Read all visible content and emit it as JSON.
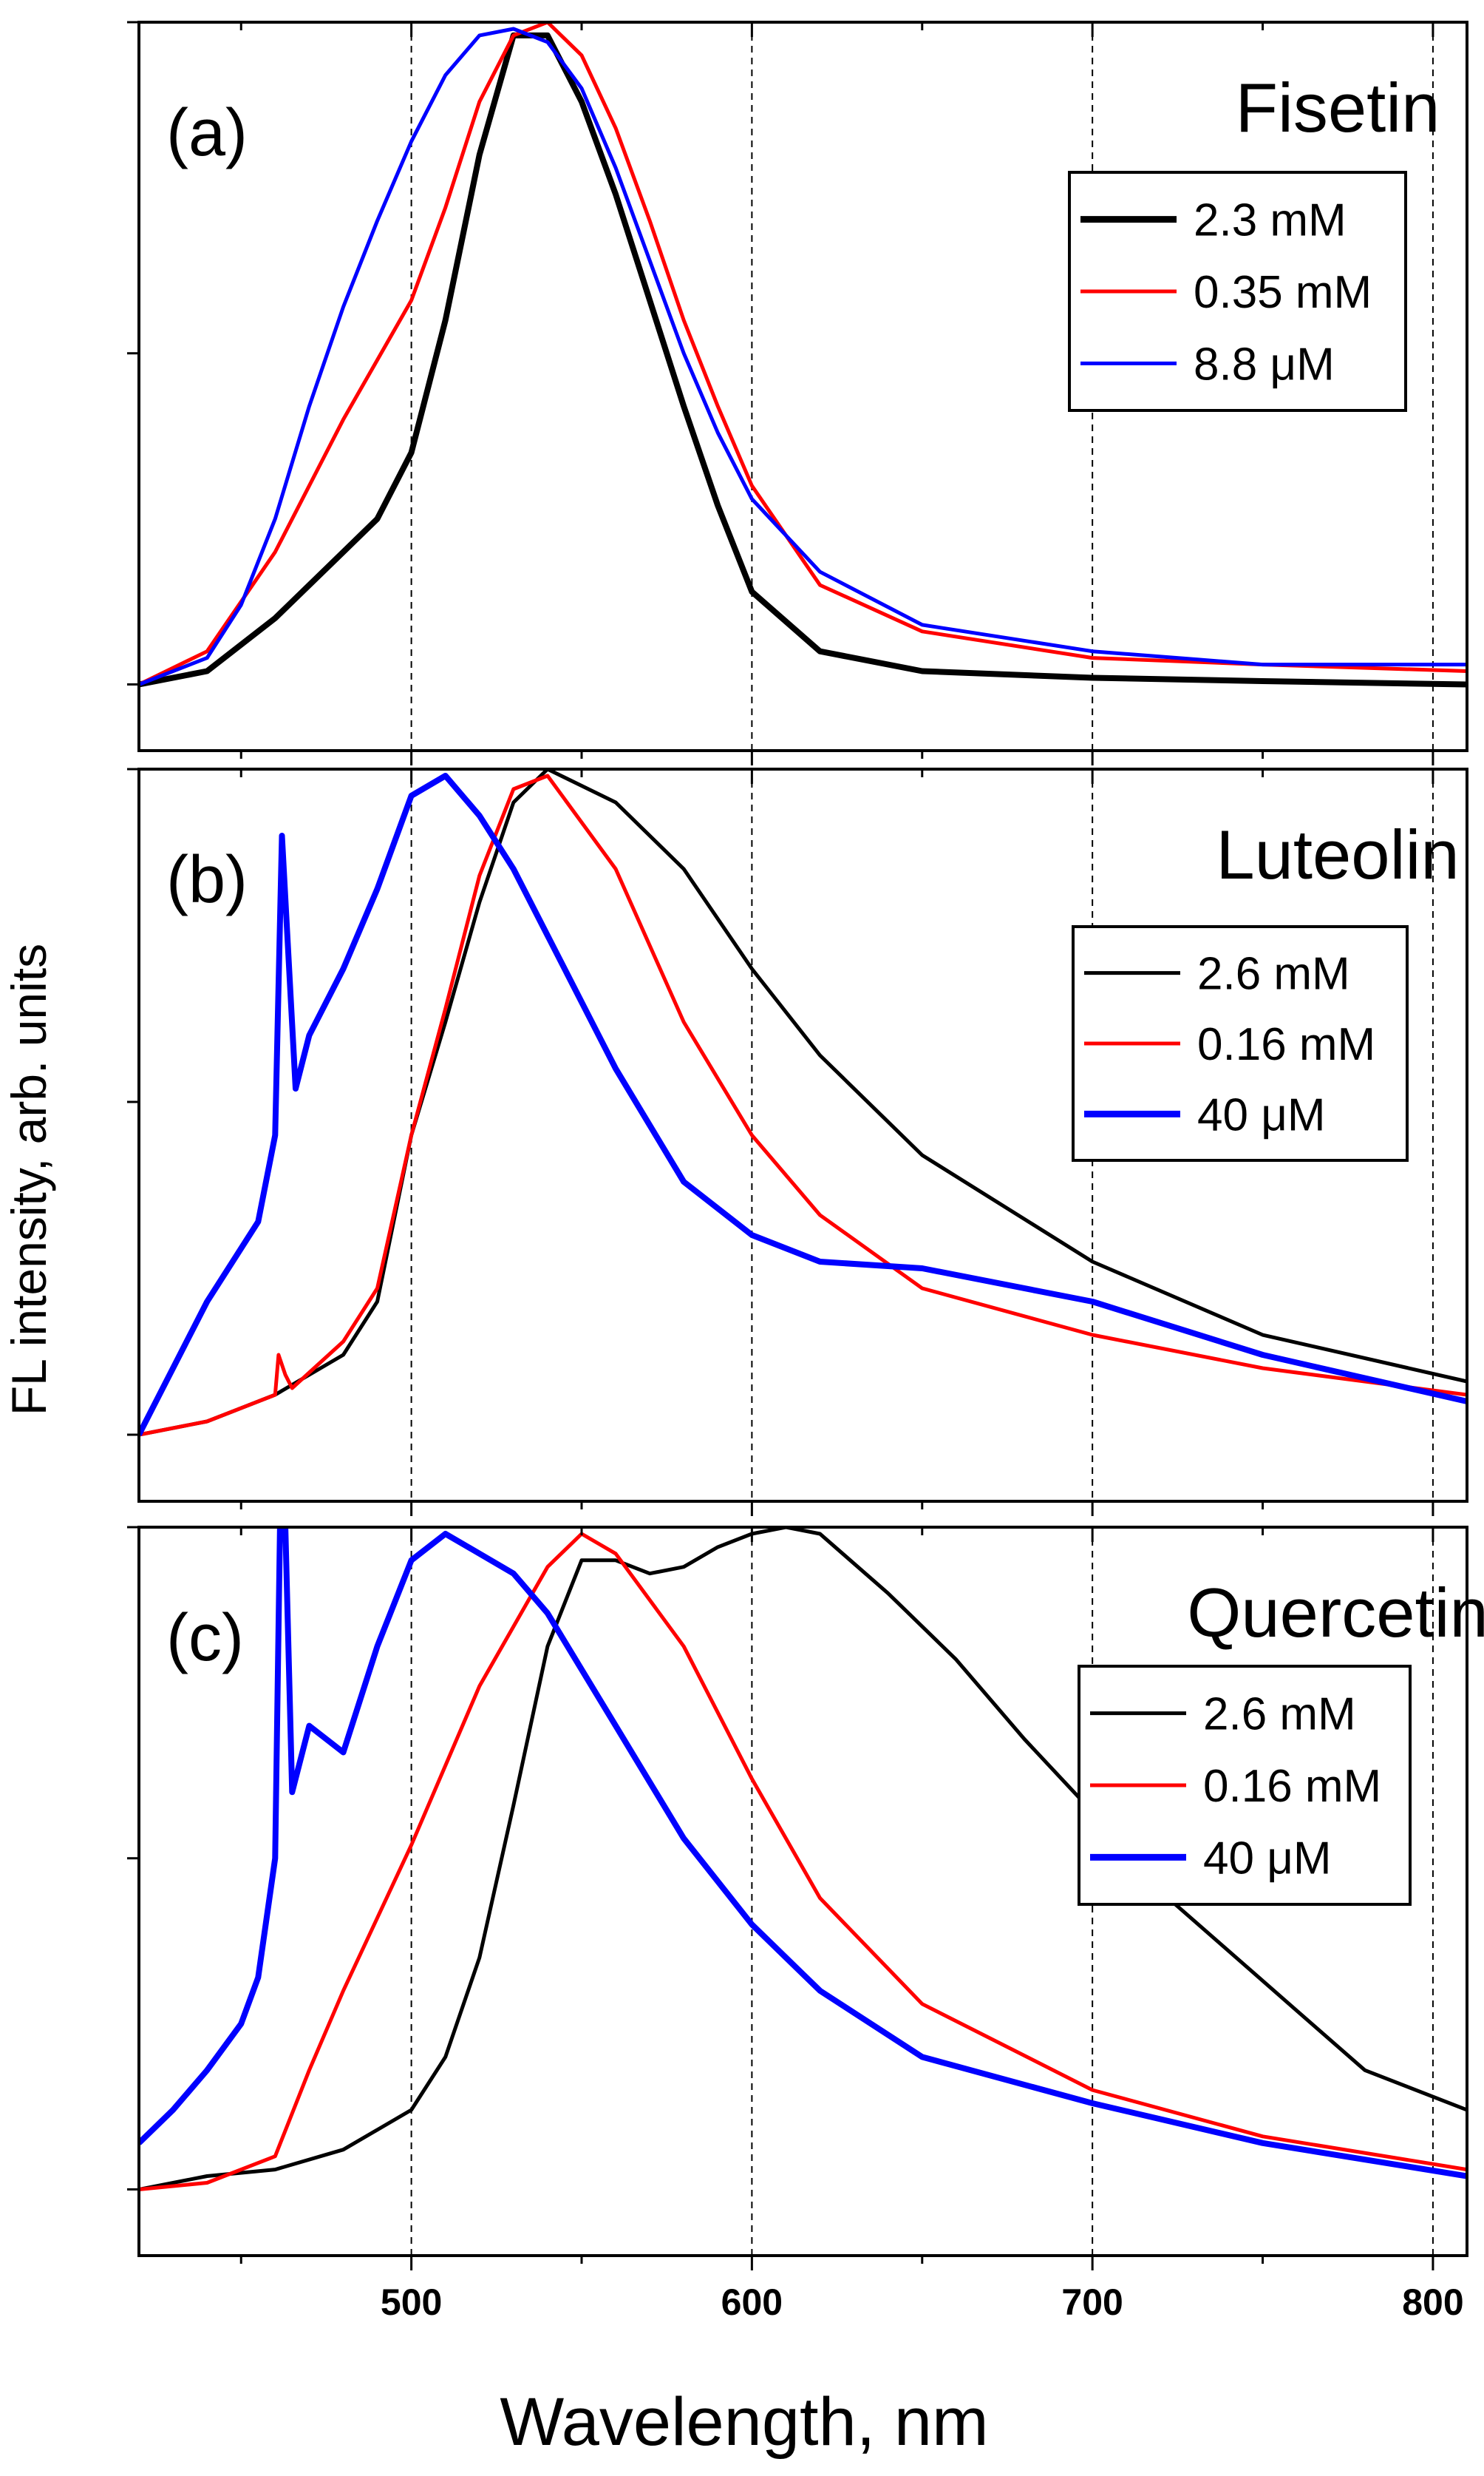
{
  "figure": {
    "ylabel": "FL intensity, arb. units",
    "xlabel": "Wavelength, nm"
  },
  "chart_data": [
    {
      "type": "line",
      "panel_label": "(a)",
      "title": "Fisetin",
      "xlim": [
        420,
        810
      ],
      "ylim": [
        -0.1,
        1.0
      ],
      "x_ticks": [
        500,
        600,
        700,
        800
      ],
      "x_tick_labels": [
        "500",
        "600",
        "700",
        "800"
      ],
      "gridlines_x": [
        500,
        600,
        700,
        800
      ],
      "grid": "vertical dashed",
      "legend_position": "top-right",
      "series": [
        {
          "name": "2.3 mM",
          "color": "#000000",
          "x": [
            420,
            440,
            460,
            480,
            490,
            500,
            510,
            520,
            530,
            540,
            550,
            560,
            570,
            580,
            590,
            600,
            620,
            650,
            700,
            750,
            810
          ],
          "y": [
            0.0,
            0.02,
            0.1,
            0.2,
            0.25,
            0.35,
            0.55,
            0.8,
            0.98,
            0.98,
            0.88,
            0.74,
            0.58,
            0.42,
            0.27,
            0.14,
            0.05,
            0.02,
            0.01,
            0.005,
            0.0
          ]
        },
        {
          "name": "0.35 mM",
          "color": "#ff0000",
          "x": [
            420,
            440,
            460,
            480,
            500,
            510,
            520,
            530,
            540,
            550,
            560,
            570,
            580,
            590,
            600,
            620,
            650,
            700,
            750,
            810
          ],
          "y": [
            0.0,
            0.05,
            0.2,
            0.4,
            0.58,
            0.72,
            0.88,
            0.98,
            1.0,
            0.95,
            0.84,
            0.7,
            0.55,
            0.42,
            0.3,
            0.15,
            0.08,
            0.04,
            0.03,
            0.02
          ]
        },
        {
          "name": "8.8 μM",
          "color": "#0000ff",
          "x": [
            420,
            440,
            450,
            460,
            470,
            480,
            490,
            500,
            510,
            520,
            530,
            540,
            550,
            560,
            570,
            580,
            590,
            600,
            620,
            650,
            700,
            750,
            810
          ],
          "y": [
            0.0,
            0.04,
            0.12,
            0.25,
            0.42,
            0.57,
            0.7,
            0.82,
            0.92,
            0.98,
            0.99,
            0.97,
            0.9,
            0.78,
            0.64,
            0.5,
            0.38,
            0.28,
            0.17,
            0.09,
            0.05,
            0.03,
            0.03
          ]
        }
      ]
    },
    {
      "type": "line",
      "panel_label": "(b)",
      "title": "Luteolin",
      "xlim": [
        420,
        810
      ],
      "ylim": [
        -0.1,
        1.0
      ],
      "x_ticks": [
        500,
        600,
        700,
        800
      ],
      "x_tick_labels": [
        "500",
        "600",
        "700",
        "800"
      ],
      "gridlines_x": [
        500,
        600,
        700,
        800
      ],
      "grid": "vertical dashed",
      "legend_position": "right",
      "series": [
        {
          "name": "2.6 mM",
          "color": "#000000",
          "x": [
            420,
            440,
            460,
            480,
            490,
            500,
            510,
            520,
            530,
            540,
            560,
            580,
            600,
            620,
            650,
            700,
            750,
            810
          ],
          "y": [
            0.0,
            0.02,
            0.06,
            0.12,
            0.2,
            0.45,
            0.62,
            0.8,
            0.95,
            1.0,
            0.95,
            0.85,
            0.7,
            0.57,
            0.42,
            0.26,
            0.15,
            0.08
          ]
        },
        {
          "name": "0.16 mM",
          "color": "#ff0000",
          "x": [
            420,
            440,
            460,
            461,
            463,
            465,
            480,
            490,
            500,
            510,
            520,
            530,
            540,
            560,
            580,
            600,
            620,
            650,
            700,
            750,
            810
          ],
          "y": [
            0.0,
            0.02,
            0.06,
            0.12,
            0.09,
            0.07,
            0.14,
            0.22,
            0.45,
            0.64,
            0.84,
            0.97,
            0.99,
            0.85,
            0.62,
            0.45,
            0.33,
            0.22,
            0.15,
            0.1,
            0.06
          ]
        },
        {
          "name": "40 μM",
          "color": "#0000ff",
          "x": [
            420,
            440,
            455,
            460,
            462,
            466,
            470,
            480,
            490,
            500,
            510,
            520,
            530,
            540,
            560,
            580,
            600,
            620,
            650,
            700,
            750,
            810
          ],
          "y": [
            0.0,
            0.2,
            0.32,
            0.45,
            0.9,
            0.52,
            0.6,
            0.7,
            0.82,
            0.96,
            0.99,
            0.93,
            0.85,
            0.75,
            0.55,
            0.38,
            0.3,
            0.26,
            0.25,
            0.2,
            0.12,
            0.05
          ]
        }
      ]
    },
    {
      "type": "line",
      "panel_label": "(c)",
      "title": "Quercetin",
      "xlim": [
        420,
        810
      ],
      "ylim": [
        -0.1,
        1.0
      ],
      "x_ticks": [
        500,
        600,
        700,
        800
      ],
      "x_tick_labels": [
        "500",
        "600",
        "700",
        "800"
      ],
      "gridlines_x": [
        500,
        600,
        700,
        800
      ],
      "grid": "vertical dashed",
      "legend_position": "right",
      "series": [
        {
          "name": "2.6 mM",
          "color": "#000000",
          "x": [
            420,
            440,
            460,
            480,
            500,
            510,
            520,
            530,
            540,
            550,
            560,
            570,
            580,
            590,
            600,
            610,
            620,
            640,
            660,
            680,
            700,
            720,
            740,
            760,
            780,
            810
          ],
          "y": [
            0.0,
            0.02,
            0.03,
            0.06,
            0.12,
            0.2,
            0.35,
            0.58,
            0.82,
            0.95,
            0.95,
            0.93,
            0.94,
            0.97,
            0.99,
            1.0,
            0.99,
            0.9,
            0.8,
            0.68,
            0.57,
            0.45,
            0.36,
            0.27,
            0.18,
            0.12
          ]
        },
        {
          "name": "0.16 mM",
          "color": "#ff0000",
          "x": [
            420,
            440,
            460,
            470,
            480,
            500,
            520,
            540,
            550,
            560,
            580,
            600,
            620,
            650,
            700,
            750,
            810
          ],
          "y": [
            0.0,
            0.01,
            0.05,
            0.18,
            0.3,
            0.52,
            0.76,
            0.94,
            0.99,
            0.96,
            0.82,
            0.62,
            0.44,
            0.28,
            0.15,
            0.08,
            0.03
          ]
        },
        {
          "name": "40 μM",
          "color": "#0000ff",
          "x": [
            420,
            430,
            440,
            450,
            455,
            460,
            462,
            465,
            470,
            480,
            490,
            500,
            510,
            520,
            530,
            540,
            560,
            580,
            600,
            620,
            650,
            700,
            750,
            810
          ],
          "y": [
            0.07,
            0.12,
            0.18,
            0.25,
            0.32,
            0.5,
            1.2,
            0.6,
            0.7,
            0.66,
            0.82,
            0.95,
            0.99,
            0.96,
            0.93,
            0.87,
            0.7,
            0.53,
            0.4,
            0.3,
            0.2,
            0.13,
            0.07,
            0.02
          ]
        }
      ]
    }
  ]
}
